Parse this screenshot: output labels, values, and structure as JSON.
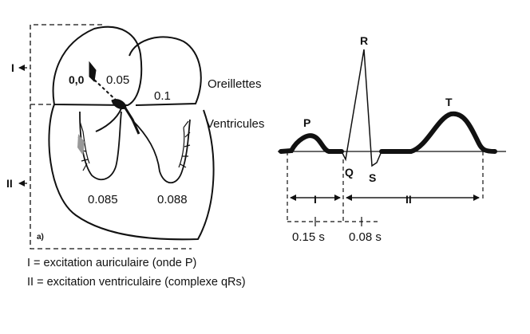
{
  "heart": {
    "atrial_times": {
      "sa_node": "0,0",
      "left_wall": "0.05",
      "right_atrium": "0.1"
    },
    "ventricular_times": {
      "left": "0.085",
      "right": "0.088"
    },
    "labels": {
      "atria": "Oreillettes",
      "ventricles": "Ventricules"
    },
    "phase_marks": {
      "atrial": "I",
      "ventricular": "II"
    },
    "panel_label": "a)"
  },
  "ecg": {
    "waves": {
      "p": "P",
      "q": "Q",
      "r": "R",
      "s": "S",
      "t": "T"
    },
    "intervals": {
      "phase_one": "I",
      "phase_two": "II",
      "pq_duration": "0.15 s",
      "qrs_duration": "0.08 s"
    }
  },
  "legend": {
    "line1": "I = excitation auriculaire (onde P)",
    "line2": "II = excitation ventriculaire (complexe qRs)"
  }
}
